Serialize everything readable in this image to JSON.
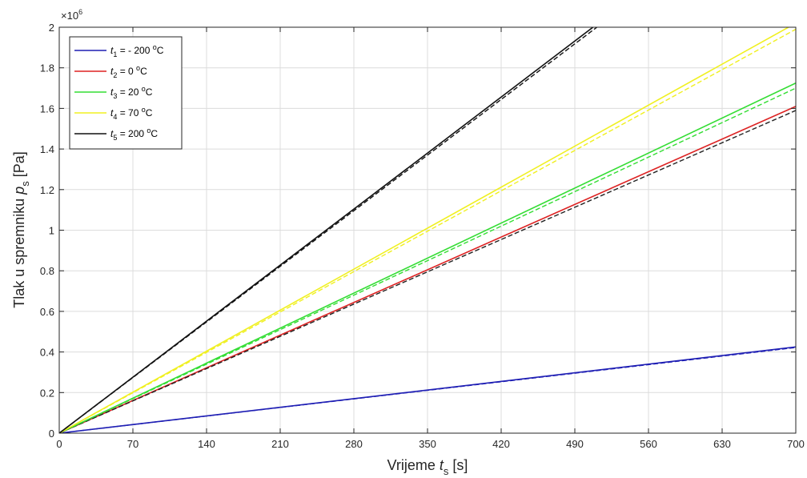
{
  "chart_data": {
    "type": "line",
    "title": "",
    "xlabel": {
      "prefix": "Vrijeme ",
      "var": "t",
      "sub": "s",
      "unit": " [s]"
    },
    "ylabel": {
      "prefix": "Tlak u spremniku ",
      "var": "p",
      "sub": "s",
      "unit": " [Pa]"
    },
    "xlim": [
      0,
      700
    ],
    "ylim": [
      0,
      2000000
    ],
    "y_exponent_label": "×10",
    "y_exponent_power": "6",
    "xticks": [
      0,
      70,
      140,
      210,
      280,
      350,
      420,
      490,
      560,
      630,
      700
    ],
    "yticks": [
      0,
      200000,
      400000,
      600000,
      800000,
      1000000,
      1200000,
      1400000,
      1600000,
      1800000,
      2000000
    ],
    "xtick_labels": [
      "0",
      "70",
      "140",
      "210",
      "280",
      "350",
      "420",
      "490",
      "560",
      "630",
      "700"
    ],
    "ytick_labels": [
      "0",
      "0.2",
      "0.4",
      "0.6",
      "0.8",
      "1",
      "1.2",
      "1.4",
      "1.6",
      "1.8",
      "2"
    ],
    "grid": true,
    "legend_position": "top-left",
    "series": [
      {
        "legend": {
          "var": "t",
          "sub": "1",
          "text": " = - 200 ",
          "sup": "o",
          "unit": "C"
        },
        "color": "#1f1fb4",
        "style": "solid",
        "x": [
          0,
          700
        ],
        "y": [
          0,
          425000
        ]
      },
      {
        "color": "#1f1fb4",
        "style": "dashed",
        "x": [
          0,
          700
        ],
        "y": [
          0,
          422000
        ]
      },
      {
        "legend": {
          "var": "t",
          "sub": "2",
          "text": " = 0 ",
          "sup": "o",
          "unit": "C"
        },
        "color": "#dd2222",
        "style": "solid",
        "x": [
          0,
          700
        ],
        "y": [
          0,
          1610000
        ]
      },
      {
        "color": "#222222",
        "style": "dashed",
        "x": [
          0,
          700
        ],
        "y": [
          0,
          1590000
        ]
      },
      {
        "legend": {
          "var": "t",
          "sub": "3",
          "text": " = 20 ",
          "sup": "o",
          "unit": "C"
        },
        "color": "#33dd33",
        "style": "solid",
        "x": [
          0,
          700
        ],
        "y": [
          0,
          1725000
        ]
      },
      {
        "color": "#33dd33",
        "style": "dashed",
        "x": [
          0,
          700
        ],
        "y": [
          0,
          1700000
        ]
      },
      {
        "legend": {
          "var": "t",
          "sub": "4",
          "text": " = 70 ",
          "sup": "o",
          "unit": "C"
        },
        "color": "#f0f020",
        "style": "solid",
        "x": [
          0,
          700
        ],
        "y": [
          0,
          2020000
        ]
      },
      {
        "color": "#f0f020",
        "style": "dashed",
        "x": [
          0,
          700
        ],
        "y": [
          0,
          1990000
        ]
      },
      {
        "legend": {
          "var": "t",
          "sub": "5",
          "text": " = 200 ",
          "sup": "o",
          "unit": "C"
        },
        "color": "#111111",
        "style": "solid",
        "x": [
          0,
          700
        ],
        "y": [
          0,
          2760000
        ]
      },
      {
        "color": "#111111",
        "style": "dashed",
        "x": [
          0,
          700
        ],
        "y": [
          0,
          2740000
        ]
      }
    ]
  }
}
